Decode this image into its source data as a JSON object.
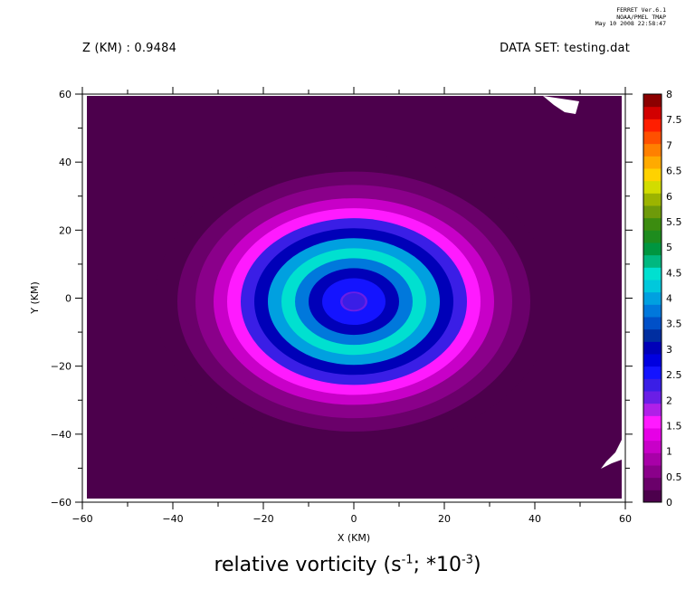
{
  "stamp": {
    "line1": "FERRET  Ver.6.1",
    "line2": "NOAA/PMEL TMAP",
    "line3": "May 10 2008 22:58:47"
  },
  "header": {
    "z_label": "Z (KM) : 0.9484",
    "dataset_label": "DATA SET: testing.dat"
  },
  "chart_data": {
    "type": "heatmap",
    "subtype": "filled-contour",
    "xlabel": "X (KM)",
    "ylabel": "Y (KM)",
    "title": {
      "text": "relative vorticity (s",
      "sup1": "-1",
      "mid": "; *10",
      "sup2": "-3",
      "end": ")"
    },
    "xlim": [
      -60,
      60
    ],
    "ylim": [
      -60,
      60
    ],
    "x_ticks": [
      -60,
      -40,
      -20,
      0,
      20,
      40,
      60
    ],
    "y_ticks": [
      -60,
      -40,
      -20,
      0,
      20,
      40,
      60
    ],
    "x_minor_step": 10,
    "y_minor_step": 10,
    "levels": [
      0,
      0.25,
      0.5,
      0.75,
      1,
      1.25,
      1.5,
      1.75,
      2,
      2.25,
      2.5,
      2.75,
      3,
      3.25,
      3.5,
      3.75,
      4,
      4.25,
      4.5,
      4.75,
      5,
      5.25,
      5.5,
      5.75,
      6,
      6.25,
      6.5,
      6.75,
      7,
      7.25,
      7.5,
      7.75,
      8
    ],
    "colorbar_labels": [
      "0",
      "0.5",
      "1",
      "1.5",
      "2",
      "2.5",
      "3",
      "3.5",
      "4",
      "4.5",
      "5",
      "5.5",
      "6",
      "6.5",
      "7",
      "7.5",
      "8"
    ],
    "colors": [
      "#4c004c",
      "#6a006a",
      "#8a008a",
      "#a800a8",
      "#c800c8",
      "#e600e6",
      "#ff1aff",
      "#b020e8",
      "#6a1ee6",
      "#3a1ee6",
      "#1414ff",
      "#0000e0",
      "#0000b8",
      "#002ea0",
      "#0050c8",
      "#0078dc",
      "#00a0e0",
      "#00c8dc",
      "#00e0d0",
      "#00b880",
      "#009640",
      "#1e8c1e",
      "#3c8c10",
      "#6e9a0a",
      "#9cb400",
      "#d2dc00",
      "#ffd200",
      "#ffaa00",
      "#ff8000",
      "#ff5000",
      "#ff1e00",
      "#d20000",
      "#8c0000"
    ],
    "field": {
      "background": 0.1,
      "rings": [
        {
          "radius_km": 0,
          "value": 2.4
        },
        {
          "radius_km": 3,
          "value": 2.2
        },
        {
          "radius_km": 7,
          "value": 2.7
        },
        {
          "radius_km": 10,
          "value": 3.2
        },
        {
          "radius_km": 13,
          "value": 3.9
        },
        {
          "radius_km": 16,
          "value": 4.6
        },
        {
          "radius_km": 19,
          "value": 4.0
        },
        {
          "radius_km": 22,
          "value": 3.0
        },
        {
          "radius_km": 25,
          "value": 2.4
        },
        {
          "radius_km": 28,
          "value": 1.7
        },
        {
          "radius_km": 31,
          "value": 1.2
        },
        {
          "radius_km": 35,
          "value": 0.7
        },
        {
          "radius_km": 39,
          "value": 0.35
        },
        {
          "radius_km": 44,
          "value": 0.1
        }
      ],
      "center": [
        0,
        -1
      ],
      "aspect_y": 0.9
    }
  }
}
